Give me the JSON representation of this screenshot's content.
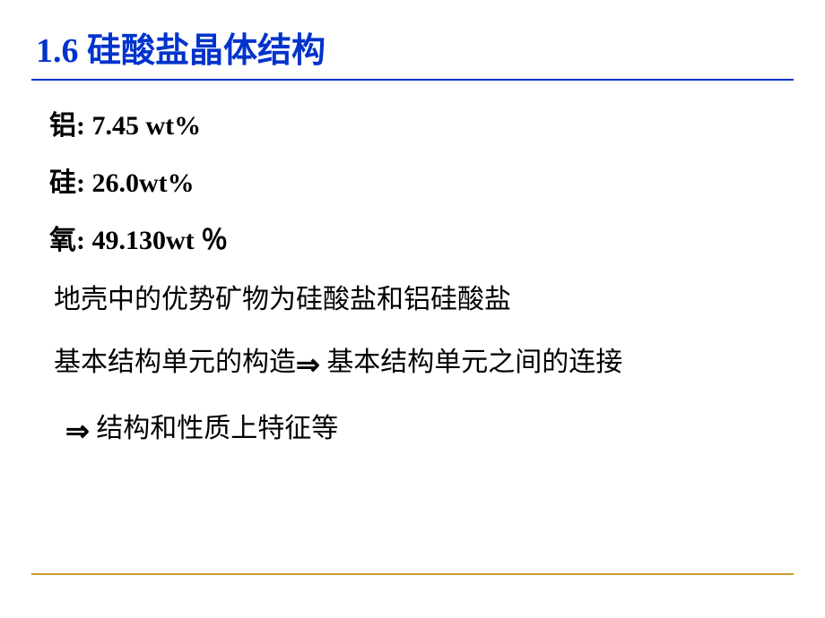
{
  "slide": {
    "title": "1.6  硅酸盐晶体结构",
    "title_color": "#0033cc",
    "underline_color": "#0033cc",
    "bottom_line_color": "#cc9933",
    "background_color": "#ffffff",
    "text_color": "#000000",
    "title_fontsize": 38,
    "body_fontsize": 30,
    "elements": {
      "aluminum": {
        "label": "铝",
        "value": "7.45 wt%"
      },
      "silicon": {
        "label": "硅",
        "value": "26.0wt%"
      },
      "oxygen": {
        "label": "氧",
        "value": "49.130wt ％"
      }
    },
    "body": {
      "line1": "地壳中的优势矿物为硅酸盐和铝硅酸盐",
      "line2_part1": "基本结构单元的构造",
      "line2_part2": " 基本结构单元之间的连接",
      "line3": " 结构和性质上特征等",
      "arrow_symbol": "⇒"
    }
  }
}
